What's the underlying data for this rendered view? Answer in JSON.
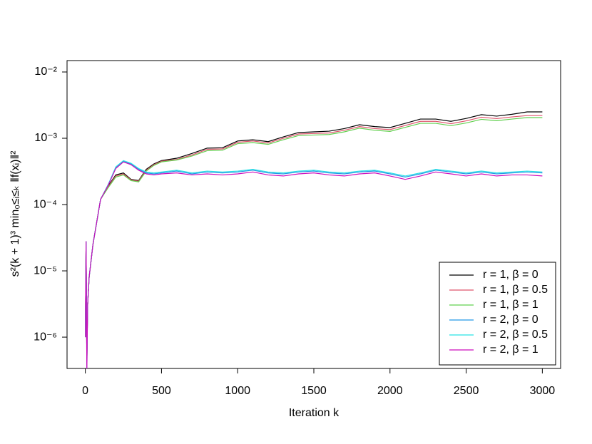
{
  "chart_data": {
    "type": "line",
    "xlabel": "Iteration  k",
    "ylabel": "s²(k + 1)³ min₀≤ᵢ≤ₖ ‖f(xᵢ)‖²",
    "x": [
      0,
      5,
      10,
      15,
      25,
      50,
      100,
      150,
      200,
      250,
      300,
      350,
      400,
      450,
      500,
      600,
      700,
      800,
      900,
      1000,
      1100,
      1200,
      1300,
      1400,
      1500,
      1600,
      1700,
      1800,
      1900,
      2000,
      2100,
      2200,
      2300,
      2400,
      2500,
      2600,
      2700,
      2800,
      2900,
      3000
    ],
    "xlim": [
      -120,
      3120
    ],
    "xticks": [
      0,
      500,
      1000,
      1500,
      2000,
      2500,
      3000
    ],
    "ylog": true,
    "ylim": [
      3.37e-07,
      0.01486
    ],
    "yticks": [
      {
        "value": 0.01,
        "label": "10⁻²"
      },
      {
        "value": 0.001,
        "label": "10⁻³"
      },
      {
        "value": 0.0001,
        "label": "10⁻⁴"
      },
      {
        "value": 1e-05,
        "label": "10⁻⁵"
      },
      {
        "value": 1e-06,
        "label": "10⁻⁶"
      }
    ],
    "legend": "bottomright",
    "series": [
      {
        "name": "r = 1, β = 0",
        "color": "#000000",
        "values": [
          1e-06,
          2.8e-05,
          4e-07,
          3e-06,
          8e-06,
          2.5e-05,
          0.00012,
          0.00019,
          0.00028,
          0.0003,
          0.00024,
          0.00023,
          0.00034,
          0.00041,
          0.00046,
          0.0005,
          0.00059,
          0.00071,
          0.00072,
          0.00091,
          0.00095,
          0.00089,
          0.00105,
          0.00122,
          0.00125,
          0.00128,
          0.0014,
          0.0016,
          0.0015,
          0.00145,
          0.00168,
          0.00195,
          0.00195,
          0.0018,
          0.00199,
          0.00227,
          0.00216,
          0.0023,
          0.0025,
          0.0025
        ]
      },
      {
        "name": "r = 1, β = 0.5",
        "color": "#DF536B",
        "values": [
          1e-06,
          2.8e-05,
          4e-07,
          3e-06,
          8e-06,
          2.5e-05,
          0.00012,
          0.000185,
          0.00027,
          0.00029,
          0.000235,
          0.000225,
          0.00033,
          0.0004,
          0.00045,
          0.00048,
          0.00056,
          0.00068,
          0.00069,
          0.00087,
          0.00091,
          0.00085,
          0.001,
          0.00116,
          0.00118,
          0.0012,
          0.00132,
          0.0015,
          0.0014,
          0.00135,
          0.00156,
          0.0018,
          0.0018,
          0.00166,
          0.00183,
          0.00208,
          0.00198,
          0.0021,
          0.0022,
          0.0022
        ]
      },
      {
        "name": "r = 1, β = 1",
        "color": "#61D04F",
        "values": [
          1e-06,
          2.8e-05,
          4e-07,
          3e-06,
          8e-06,
          2.5e-05,
          0.00012,
          0.00018,
          0.00026,
          0.00028,
          0.00023,
          0.00022,
          0.00032,
          0.00039,
          0.00044,
          0.00047,
          0.00054,
          0.00065,
          0.00066,
          0.00083,
          0.00086,
          0.00081,
          0.00095,
          0.0011,
          0.00112,
          0.00114,
          0.00125,
          0.00142,
          0.00132,
          0.00127,
          0.00146,
          0.00168,
          0.00168,
          0.00155,
          0.0017,
          0.00193,
          0.00184,
          0.00195,
          0.00205,
          0.00205
        ]
      },
      {
        "name": "r = 2, β = 0",
        "color": "#2297E6",
        "values": [
          1e-06,
          2.8e-05,
          3e-07,
          3e-06,
          8e-06,
          2.5e-05,
          0.00012,
          0.0002,
          0.00036,
          0.00045,
          0.00041,
          0.00034,
          0.0003,
          0.00029,
          0.0003,
          0.00032,
          0.00029,
          0.00031,
          0.0003,
          0.00031,
          0.00033,
          0.0003,
          0.00029,
          0.00031,
          0.00032,
          0.0003,
          0.00029,
          0.00031,
          0.00032,
          0.00029,
          0.00026,
          0.00029,
          0.00033,
          0.00031,
          0.00029,
          0.00031,
          0.00029,
          0.0003,
          0.00031,
          0.0003
        ]
      },
      {
        "name": "r = 2, β = 0.5",
        "color": "#28E2E5",
        "values": [
          1e-06,
          2.8e-05,
          5e-07,
          3e-06,
          8e-06,
          2.5e-05,
          0.00012,
          0.0002,
          0.00037,
          0.00046,
          0.00042,
          0.00035,
          0.00031,
          0.0003,
          0.00031,
          0.00033,
          0.0003,
          0.00032,
          0.00031,
          0.00032,
          0.00034,
          0.00031,
          0.0003,
          0.00032,
          0.00033,
          0.00031,
          0.0003,
          0.00032,
          0.00033,
          0.0003,
          0.00027,
          0.0003,
          0.00034,
          0.00032,
          0.0003,
          0.00032,
          0.0003,
          0.00031,
          0.00032,
          0.00031
        ]
      },
      {
        "name": "r = 2, β = 1",
        "color": "#CD0BBC",
        "values": [
          1e-06,
          2.8e-05,
          3e-07,
          3e-06,
          8e-06,
          2.5e-05,
          0.00012,
          0.000195,
          0.00035,
          0.00044,
          0.0004,
          0.00033,
          0.00029,
          0.00028,
          0.00029,
          0.0003,
          0.00028,
          0.00029,
          0.00028,
          0.00029,
          0.00031,
          0.00028,
          0.00027,
          0.00029,
          0.0003,
          0.00028,
          0.00027,
          0.00029,
          0.0003,
          0.00027,
          0.00024,
          0.00027,
          0.00031,
          0.00029,
          0.00027,
          0.00029,
          0.00027,
          0.00028,
          0.00028,
          0.00027
        ]
      }
    ]
  }
}
